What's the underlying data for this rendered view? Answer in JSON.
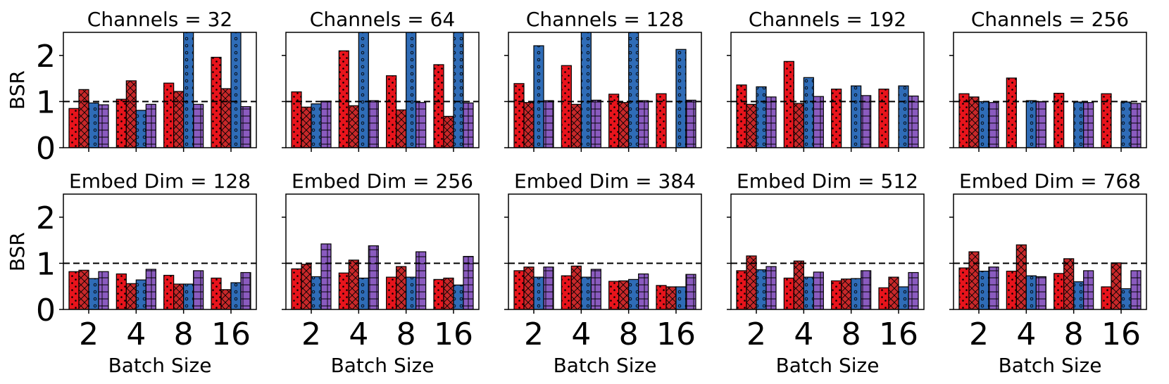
{
  "colors": {
    "series": [
      "#e8141c",
      "#c8282a",
      "#2f6cb7",
      "#8a5bbf"
    ],
    "reference_line": "#000000"
  },
  "series_hatches": [
    "dots",
    "crosshatch",
    "circles",
    "grid"
  ],
  "chart_data": [
    {
      "type": "bar",
      "title": "Channels = 32",
      "ylabel": "BSR",
      "xlabel": "",
      "categories": [
        "2",
        "4",
        "8",
        "16"
      ],
      "ylim": [
        0,
        2.5
      ],
      "yticks": [
        "0",
        "1",
        "2"
      ],
      "reference": 1,
      "series": [
        {
          "values": [
            0.85,
            1.05,
            1.4,
            1.96
          ]
        },
        {
          "values": [
            1.26,
            1.45,
            1.22,
            1.28
          ]
        },
        {
          "values": [
            0.97,
            0.81,
            2.5,
            2.5
          ]
        },
        {
          "values": [
            0.93,
            0.94,
            0.94,
            0.89
          ]
        }
      ]
    },
    {
      "type": "bar",
      "title": "Channels = 64",
      "ylabel": "",
      "xlabel": "",
      "categories": [
        "2",
        "4",
        "8",
        "16"
      ],
      "ylim": [
        0,
        2.5
      ],
      "yticks": [
        "0",
        "1",
        "2"
      ],
      "reference": 1,
      "series": [
        {
          "values": [
            1.21,
            2.1,
            1.56,
            1.8
          ]
        },
        {
          "values": [
            0.88,
            0.91,
            0.82,
            0.68
          ]
        },
        {
          "values": [
            0.95,
            2.5,
            2.5,
            2.5
          ]
        },
        {
          "values": [
            1.01,
            1.02,
            0.98,
            0.97
          ]
        }
      ]
    },
    {
      "type": "bar",
      "title": "Channels = 128",
      "ylabel": "",
      "xlabel": "",
      "categories": [
        "2",
        "4",
        "8",
        "16"
      ],
      "ylim": [
        0,
        2.5
      ],
      "yticks": [
        "0",
        "1",
        "2"
      ],
      "reference": 1,
      "series": [
        {
          "values": [
            1.39,
            1.78,
            1.16,
            1.17
          ]
        },
        {
          "values": [
            0.98,
            0.94,
            0.98,
            0
          ]
        },
        {
          "values": [
            2.21,
            2.5,
            2.5,
            2.13
          ]
        },
        {
          "values": [
            1.02,
            1.03,
            1.02,
            1.03
          ]
        }
      ]
    },
    {
      "type": "bar",
      "title": "Channels = 192",
      "ylabel": "",
      "xlabel": "",
      "categories": [
        "2",
        "4",
        "8",
        "16"
      ],
      "ylim": [
        0,
        2.5
      ],
      "yticks": [
        "0",
        "1",
        "2"
      ],
      "reference": 1,
      "series": [
        {
          "values": [
            1.36,
            1.87,
            1.27,
            1.27
          ]
        },
        {
          "values": [
            0.94,
            0.96,
            0,
            0
          ]
        },
        {
          "values": [
            1.32,
            1.52,
            1.34,
            1.34
          ]
        },
        {
          "values": [
            1.1,
            1.11,
            1.13,
            1.12
          ]
        }
      ]
    },
    {
      "type": "bar",
      "title": "Channels = 256",
      "ylabel": "",
      "xlabel": "",
      "categories": [
        "2",
        "4",
        "8",
        "16"
      ],
      "ylim": [
        0,
        2.5
      ],
      "yticks": [
        "0",
        "1",
        "2"
      ],
      "reference": 1,
      "series": [
        {
          "values": [
            1.17,
            1.51,
            1.18,
            1.17
          ]
        },
        {
          "values": [
            1.1,
            0,
            0,
            0
          ]
        },
        {
          "values": [
            1.0,
            1.02,
            0.99,
            0.99
          ]
        },
        {
          "values": [
            0.98,
            1.0,
            0.98,
            0.96
          ]
        }
      ]
    },
    {
      "type": "bar",
      "title": "Embed Dim = 128",
      "ylabel": "BSR",
      "xlabel": "Batch Size",
      "categories": [
        "2",
        "4",
        "8",
        "16"
      ],
      "ylim": [
        0,
        2.5
      ],
      "yticks": [
        "0",
        "1",
        "2"
      ],
      "reference": 1,
      "series": [
        {
          "values": [
            0.82,
            0.77,
            0.74,
            0.68
          ]
        },
        {
          "values": [
            0.85,
            0.56,
            0.55,
            0.43
          ]
        },
        {
          "values": [
            0.67,
            0.64,
            0.55,
            0.58
          ]
        },
        {
          "values": [
            0.82,
            0.87,
            0.84,
            0.8
          ]
        }
      ]
    },
    {
      "type": "bar",
      "title": "Embed Dim = 256",
      "ylabel": "",
      "xlabel": "Batch Size",
      "categories": [
        "2",
        "4",
        "8",
        "16"
      ],
      "ylim": [
        0,
        2.5
      ],
      "yticks": [
        "0",
        "1",
        "2"
      ],
      "reference": 1,
      "series": [
        {
          "values": [
            0.88,
            0.79,
            0.7,
            0.65
          ]
        },
        {
          "values": [
            0.98,
            1.07,
            0.93,
            0.68
          ]
        },
        {
          "values": [
            0.71,
            0.68,
            0.7,
            0.53
          ]
        },
        {
          "values": [
            1.42,
            1.38,
            1.25,
            1.15
          ]
        }
      ]
    },
    {
      "type": "bar",
      "title": "Embed Dim = 384",
      "ylabel": "",
      "xlabel": "Batch Size",
      "categories": [
        "2",
        "4",
        "8",
        "16"
      ],
      "ylim": [
        0,
        2.5
      ],
      "yticks": [
        "0",
        "1",
        "2"
      ],
      "reference": 1,
      "series": [
        {
          "values": [
            0.84,
            0.73,
            0.61,
            0.52
          ]
        },
        {
          "values": [
            0.92,
            0.94,
            0.62,
            0.49
          ]
        },
        {
          "values": [
            0.7,
            0.7,
            0.65,
            0.49
          ]
        },
        {
          "values": [
            0.92,
            0.87,
            0.77,
            0.76
          ]
        }
      ]
    },
    {
      "type": "bar",
      "title": "Embed Dim = 512",
      "ylabel": "",
      "xlabel": "Batch Size",
      "categories": [
        "2",
        "4",
        "8",
        "16"
      ],
      "ylim": [
        0,
        2.5
      ],
      "yticks": [
        "0",
        "1",
        "2"
      ],
      "reference": 1,
      "series": [
        {
          "values": [
            0.84,
            0.68,
            0.62,
            0.47
          ]
        },
        {
          "values": [
            1.16,
            1.05,
            0.66,
            0.7
          ]
        },
        {
          "values": [
            0.86,
            0.7,
            0.67,
            0.49
          ]
        },
        {
          "values": [
            0.93,
            0.81,
            0.84,
            0.8
          ]
        }
      ]
    },
    {
      "type": "bar",
      "title": "Embed Dim = 768",
      "ylabel": "",
      "xlabel": "Batch Size",
      "categories": [
        "2",
        "4",
        "8",
        "16"
      ],
      "ylim": [
        0,
        2.5
      ],
      "yticks": [
        "0",
        "1",
        "2"
      ],
      "reference": 1,
      "series": [
        {
          "values": [
            0.9,
            0.83,
            0.78,
            0.49
          ]
        },
        {
          "values": [
            1.25,
            1.4,
            1.1,
            1.01
          ]
        },
        {
          "values": [
            0.83,
            0.73,
            0.6,
            0.45
          ]
        },
        {
          "values": [
            0.92,
            0.71,
            0.84,
            0.84
          ]
        }
      ]
    }
  ]
}
